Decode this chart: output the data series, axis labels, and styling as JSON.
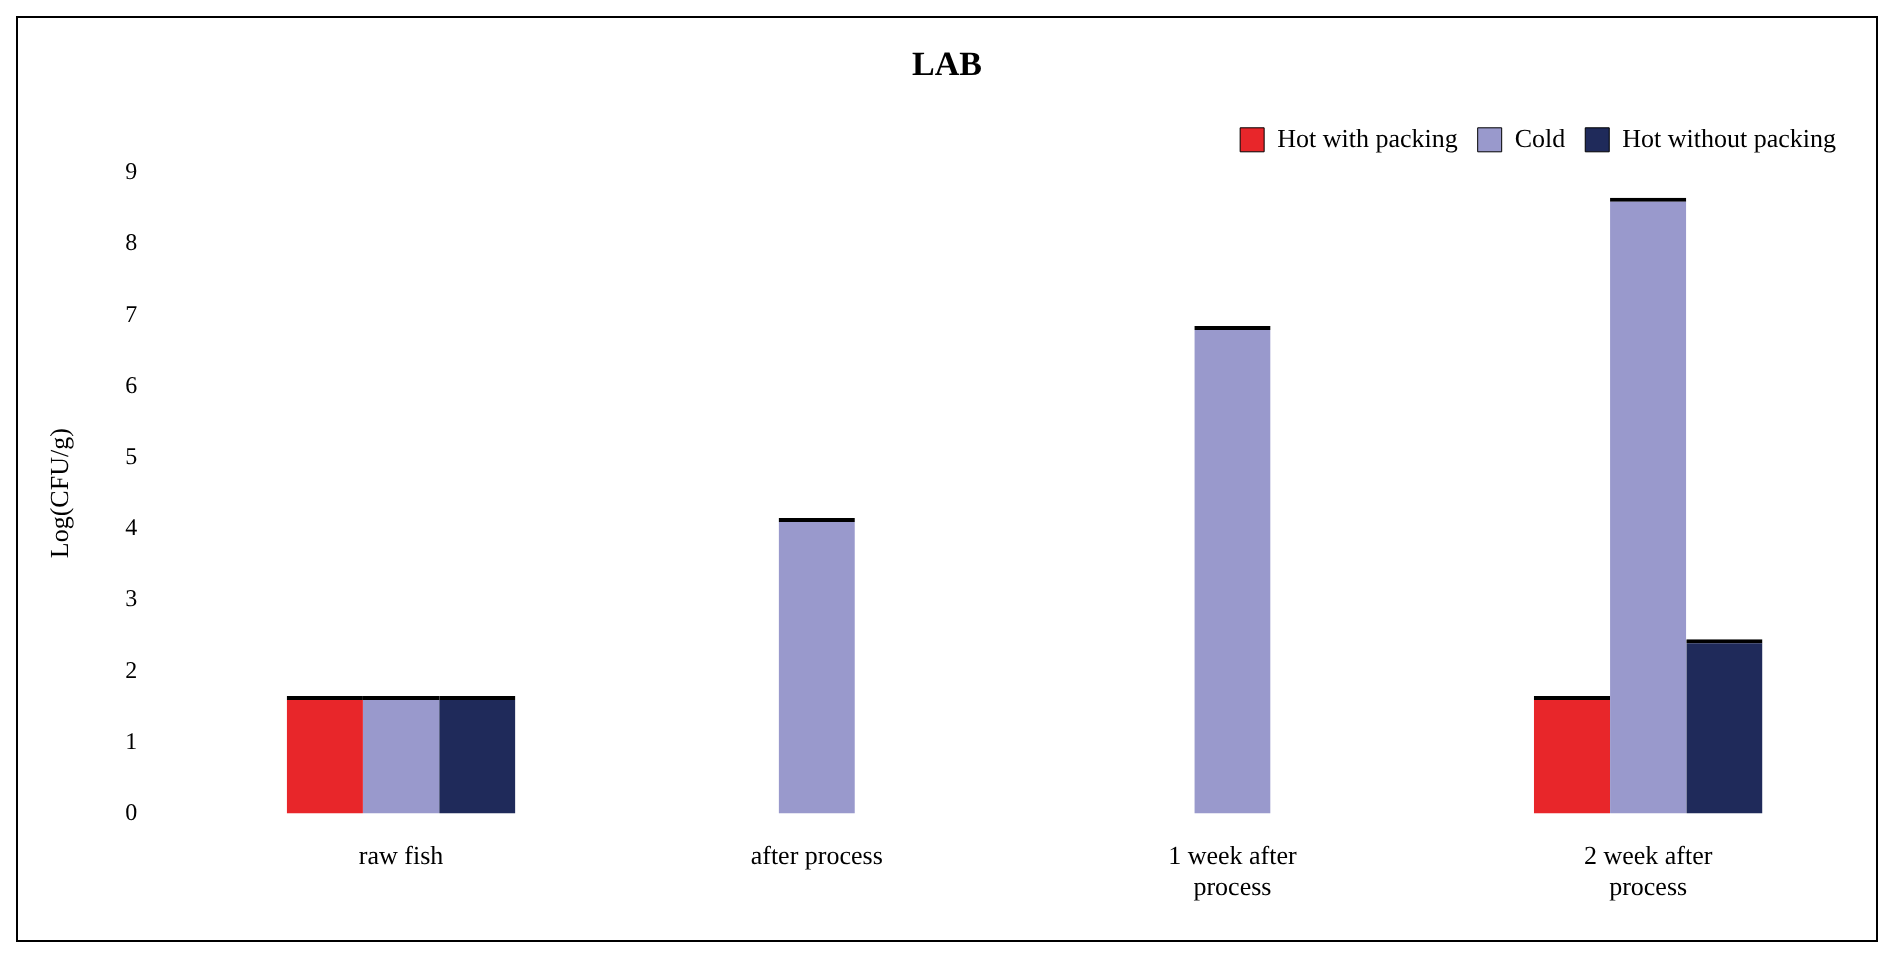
{
  "chart_data": {
    "type": "bar",
    "title": "LAB",
    "ylabel": "Log(CFU/g)",
    "categories": [
      "raw fish",
      "after process",
      [
        "1 week after",
        "process"
      ],
      [
        "2 week after",
        "process"
      ]
    ],
    "series": [
      {
        "name": "Hot with packing",
        "color": "#e8262a",
        "values": [
          1.65,
          null,
          null,
          1.65
        ]
      },
      {
        "name": "Cold",
        "color": "#9999cc",
        "values": [
          1.65,
          4.15,
          6.85,
          8.65
        ]
      },
      {
        "name": "Hot without packing",
        "color": "#1f2a5a",
        "values": [
          1.65,
          null,
          null,
          2.45
        ]
      }
    ],
    "ylim": [
      0,
      9
    ],
    "yticks": [
      0,
      1,
      2,
      3,
      4,
      5,
      6,
      7,
      8,
      9
    ],
    "grid": false,
    "legend": "top right"
  }
}
